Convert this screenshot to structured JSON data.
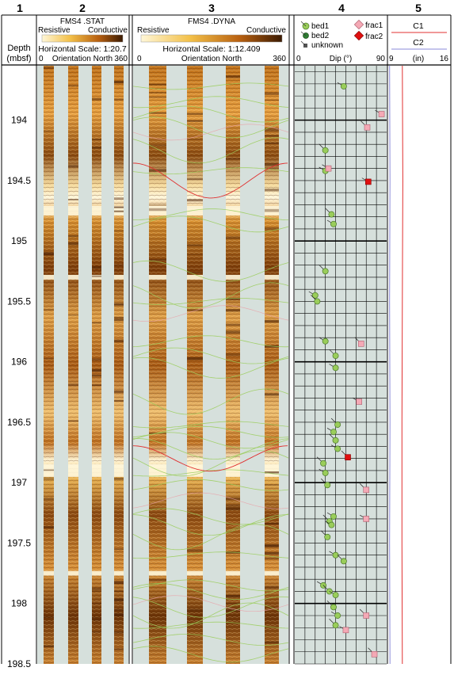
{
  "columns": {
    "c1": {
      "number": "1",
      "label_line1": "Depth",
      "label_line2": "(mbsf)"
    },
    "c2": {
      "number": "2",
      "tool": "FMS4 .STAT",
      "left": "Resistive",
      "right": "Conductive",
      "scale": "Horizontal Scale: 1:20.7",
      "orient_left": "0",
      "orient_mid": "Orientation North",
      "orient_right": "360"
    },
    "c3": {
      "number": "3",
      "tool": "FMS4 .DYNA",
      "left": "Resistive",
      "right": "Conductive",
      "scale": "Horizontal Scale:  1:12.409",
      "orient_left": "0",
      "orient_mid": "Orientation North",
      "orient_right": "360"
    },
    "c4": {
      "number": "4",
      "legend": {
        "bed1": "bed1",
        "bed2": "bed2",
        "unknown": "unknown",
        "frac1": "frac1",
        "frac2": "frac2"
      },
      "axis_left": "0",
      "axis_mid": "Dip (°)",
      "axis_right": "90"
    },
    "c5": {
      "number": "5",
      "c1": "C1",
      "c2": "C2",
      "axis_left": "9",
      "axis_mid": "(in)",
      "axis_right": "16"
    }
  },
  "depth_ticks": [
    "194",
    "194.5",
    "195",
    "195.5",
    "196",
    "196.5",
    "197",
    "197.5",
    "198",
    "198.5"
  ],
  "colors": {
    "bed1": "#9acd5a",
    "bed2": "#2e7d32",
    "unknown": "#555555",
    "frac1": "#f4a9b5",
    "frac2": "#e01010",
    "c1": "#e03030",
    "c2": "#8a8ad8",
    "image_dark": "#5a2a05",
    "image_light": "#f3d080",
    "pad_gap": "#d6e0dc"
  },
  "chart_data": {
    "type": "scatter",
    "xlabel": "Dip (°)",
    "ylabel": "Depth (mbsf)",
    "xlim": [
      0,
      90
    ],
    "ylim": [
      198.5,
      193.55
    ],
    "series": [
      {
        "name": "bed1",
        "points": [
          [
            48,
            193.72
          ],
          [
            30,
            194.25
          ],
          [
            30,
            194.42
          ],
          [
            36,
            194.78
          ],
          [
            38,
            194.86
          ],
          [
            30,
            195.25
          ],
          [
            20,
            195.45
          ],
          [
            22,
            195.5
          ],
          [
            30,
            195.83
          ],
          [
            40,
            195.95
          ],
          [
            40,
            196.05
          ],
          [
            42,
            196.52
          ],
          [
            38,
            196.58
          ],
          [
            40,
            196.65
          ],
          [
            42,
            196.72
          ],
          [
            28,
            196.84
          ],
          [
            30,
            196.92
          ],
          [
            32,
            197.02
          ],
          [
            38,
            197.28
          ],
          [
            34,
            197.32
          ],
          [
            36,
            197.35
          ],
          [
            32,
            197.45
          ],
          [
            40,
            197.6
          ],
          [
            48,
            197.65
          ],
          [
            28,
            197.85
          ],
          [
            34,
            197.9
          ],
          [
            40,
            197.93
          ],
          [
            38,
            198.03
          ],
          [
            42,
            198.1
          ],
          [
            40,
            198.18
          ]
        ]
      },
      {
        "name": "frac1",
        "points": [
          [
            85,
            193.95
          ],
          [
            71,
            194.06
          ],
          [
            33,
            194.4
          ],
          [
            65,
            195.85
          ],
          [
            63,
            196.33
          ],
          [
            70,
            197.06
          ],
          [
            70,
            197.3
          ],
          [
            70,
            198.1
          ],
          [
            50,
            198.22
          ],
          [
            78,
            198.42
          ]
        ]
      },
      {
        "name": "frac2",
        "points": [
          [
            72,
            194.51
          ],
          [
            52,
            196.79
          ]
        ]
      }
    ],
    "caliper": [
      {
        "name": "C1",
        "unit": "in",
        "values": [
          [
            10.6,
            193.55
          ],
          [
            10.65,
            194.5
          ],
          [
            10.6,
            195.5
          ],
          [
            10.55,
            196.5
          ],
          [
            10.55,
            197.5
          ],
          [
            10.6,
            198.5
          ]
        ]
      },
      {
        "name": "C2",
        "unit": "in",
        "values": [
          [
            9.15,
            193.55
          ],
          [
            9.2,
            194.5
          ],
          [
            9.15,
            195.5
          ],
          [
            9.2,
            196.5
          ],
          [
            9.15,
            197.5
          ],
          [
            9.2,
            198.5
          ]
        ]
      }
    ]
  }
}
